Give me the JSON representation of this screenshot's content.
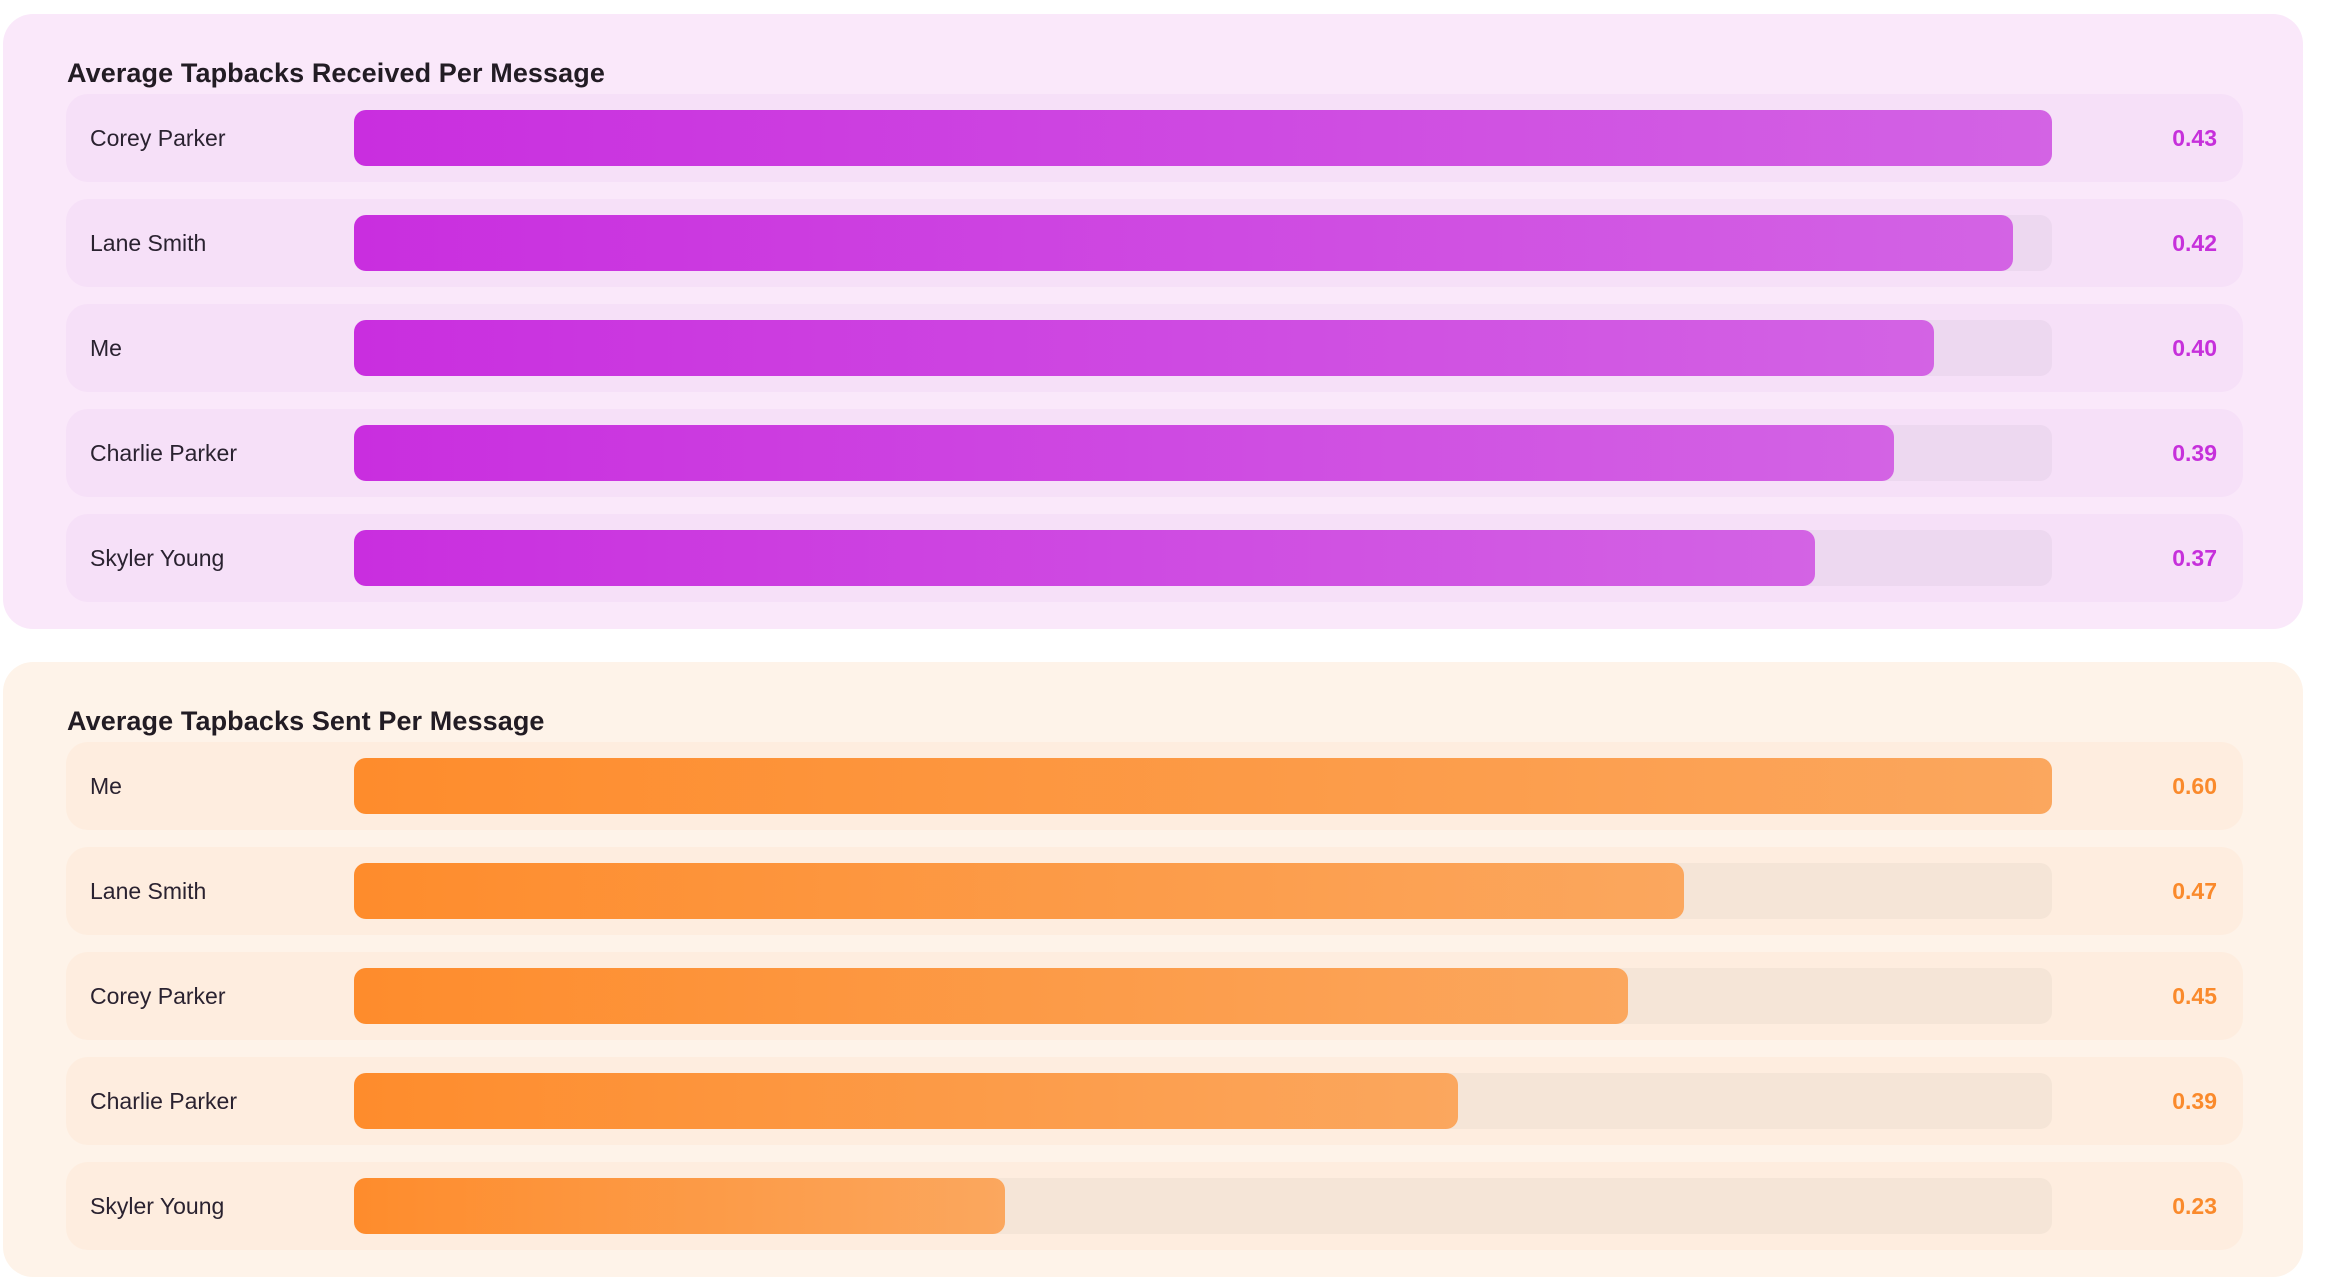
{
  "chart_data": [
    {
      "type": "bar",
      "orientation": "horizontal",
      "title": "Average Tapbacks Received Per Message",
      "categories": [
        "Corey Parker",
        "Lane Smith",
        "Me",
        "Charlie Parker",
        "Skyler Young"
      ],
      "values": [
        0.43,
        0.42,
        0.4,
        0.39,
        0.37
      ],
      "value_labels": [
        "0.43",
        "0.42",
        "0.40",
        "0.39",
        "0.37"
      ],
      "xlim": [
        0,
        0.43
      ],
      "color": "#C92EDF",
      "grid": false,
      "legend": "none"
    },
    {
      "type": "bar",
      "orientation": "horizontal",
      "title": "Average Tapbacks Sent Per Message",
      "categories": [
        "Me",
        "Lane Smith",
        "Corey Parker",
        "Charlie Parker",
        "Skyler Young"
      ],
      "values": [
        0.6,
        0.47,
        0.45,
        0.39,
        0.23
      ],
      "value_labels": [
        "0.60",
        "0.47",
        "0.45",
        "0.39",
        "0.23"
      ],
      "xlim": [
        0,
        0.6
      ],
      "color": "#FE8C2C",
      "grid": false,
      "legend": "none"
    }
  ]
}
